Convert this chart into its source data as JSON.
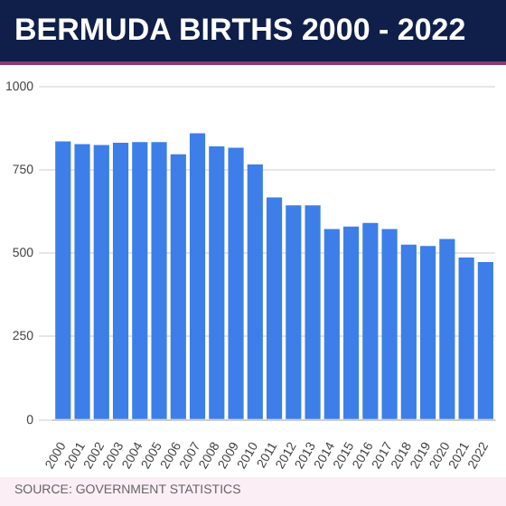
{
  "chart_data": {
    "type": "bar",
    "title": "BERMUDA BIRTHS 2000 - 2022",
    "categories": [
      "2000",
      "2001",
      "2002",
      "2003",
      "2004",
      "2005",
      "2006",
      "2007",
      "2008",
      "2009",
      "2010",
      "2011",
      "2012",
      "2013",
      "2014",
      "2015",
      "2016",
      "2017",
      "2018",
      "2019",
      "2020",
      "2021",
      "2022"
    ],
    "values": [
      836,
      828,
      825,
      832,
      834,
      834,
      797,
      860,
      821,
      817,
      767,
      668,
      644,
      644,
      573,
      580,
      591,
      573,
      526,
      522,
      543,
      487,
      474
    ],
    "color": "#3d7ee8",
    "ylim": [
      0,
      1000
    ],
    "yticks": [
      0,
      250,
      500,
      750,
      1000
    ],
    "grid": "y",
    "annotations": [
      "SOURCE: GOVERNMENT STATISTICS"
    ]
  }
}
